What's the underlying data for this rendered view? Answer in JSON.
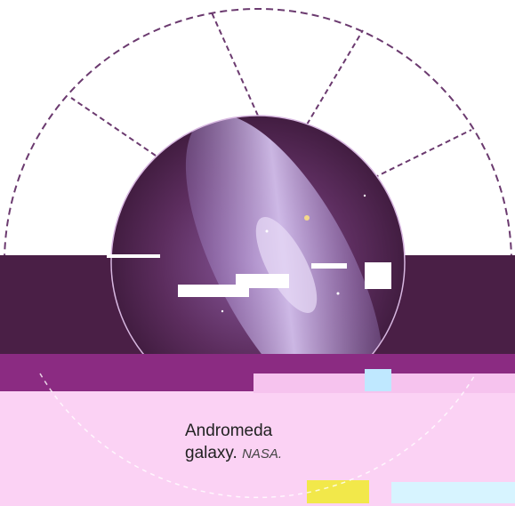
{
  "caption": {
    "title_line1": "Andromeda",
    "title_line2": "galaxy.",
    "credit": "NASA."
  },
  "colors": {
    "plum": "#4a1f46",
    "lilac": "#b57ab8",
    "pink_overlay": "#fbd2f4",
    "dashed_ring": "#6b3a6f",
    "galaxy_core": "#cfb3e8"
  },
  "icons": {
    "galaxy_disc": "andromeda-galaxy-image"
  }
}
